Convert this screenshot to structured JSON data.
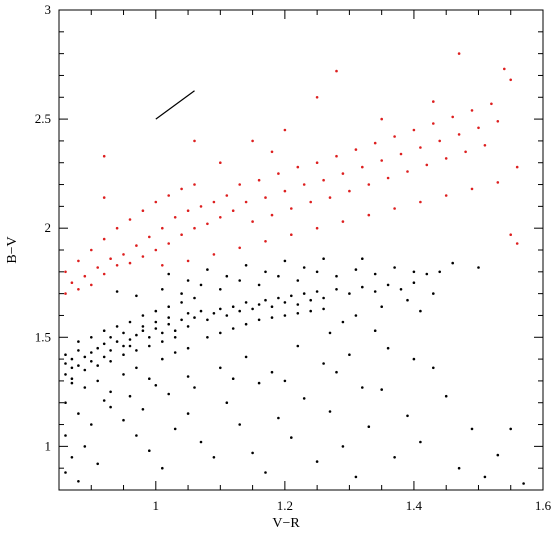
{
  "chart_data": {
    "type": "scatter",
    "xlabel": "V−R",
    "ylabel": "B−V",
    "xlim": [
      0.85,
      1.6
    ],
    "ylim": [
      0.8,
      3.0
    ],
    "xticks": [
      1,
      1.2,
      1.4,
      1.6
    ],
    "xtick_labels": [
      "1",
      "1.2",
      "1.4",
      "1.6"
    ],
    "yticks": [
      1,
      1.5,
      2,
      2.5,
      3
    ],
    "ytick_labels": [
      "1",
      "1.5",
      "2",
      "2.5",
      "3"
    ],
    "grid": false,
    "colors": {
      "series_black": "#000000",
      "series_red": "#dd1f1f"
    },
    "reddening_vector": {
      "x": [
        1.0,
        1.06
      ],
      "y": [
        2.5,
        2.63
      ]
    },
    "series": [
      {
        "color": "#000000",
        "points": [
          [
            0.86,
            1.38
          ],
          [
            0.87,
            1.4
          ],
          [
            0.88,
            1.37
          ],
          [
            0.86,
            1.42
          ],
          [
            0.89,
            1.41
          ],
          [
            0.88,
            1.44
          ],
          [
            0.9,
            1.43
          ],
          [
            0.87,
            1.36
          ],
          [
            0.9,
            1.39
          ],
          [
            0.91,
            1.45
          ],
          [
            0.92,
            1.47
          ],
          [
            0.93,
            1.44
          ],
          [
            0.92,
            1.41
          ],
          [
            0.94,
            1.48
          ],
          [
            0.95,
            1.46
          ],
          [
            0.93,
            1.5
          ],
          [
            0.96,
            1.49
          ],
          [
            0.95,
            1.52
          ],
          [
            0.97,
            1.51
          ],
          [
            0.96,
            1.46
          ],
          [
            0.98,
            1.53
          ],
          [
            0.99,
            1.5
          ],
          [
            0.98,
            1.55
          ],
          [
            1.0,
            1.54
          ],
          [
            1.01,
            1.52
          ],
          [
            1.0,
            1.57
          ],
          [
            1.02,
            1.56
          ],
          [
            1.03,
            1.53
          ],
          [
            1.02,
            1.59
          ],
          [
            1.04,
            1.58
          ],
          [
            1.05,
            1.55
          ],
          [
            1.05,
            1.61
          ],
          [
            1.06,
            1.59
          ],
          [
            1.07,
            1.62
          ],
          [
            1.08,
            1.58
          ],
          [
            1.09,
            1.61
          ],
          [
            1.1,
            1.63
          ],
          [
            1.11,
            1.6
          ],
          [
            1.12,
            1.64
          ],
          [
            1.13,
            1.62
          ],
          [
            1.14,
            1.66
          ],
          [
            1.15,
            1.63
          ],
          [
            1.16,
            1.65
          ],
          [
            1.17,
            1.67
          ],
          [
            1.18,
            1.64
          ],
          [
            1.19,
            1.68
          ],
          [
            1.2,
            1.66
          ],
          [
            1.21,
            1.69
          ],
          [
            1.22,
            1.65
          ],
          [
            1.23,
            1.7
          ],
          [
            1.24,
            1.67
          ],
          [
            1.25,
            1.71
          ],
          [
            1.26,
            1.68
          ],
          [
            1.28,
            1.72
          ],
          [
            1.3,
            1.7
          ],
          [
            1.32,
            1.73
          ],
          [
            1.34,
            1.71
          ],
          [
            1.36,
            1.74
          ],
          [
            1.38,
            1.72
          ],
          [
            1.4,
            1.75
          ],
          [
            0.86,
            1.33
          ],
          [
            0.87,
            1.31
          ],
          [
            0.89,
            1.35
          ],
          [
            0.91,
            1.37
          ],
          [
            0.93,
            1.39
          ],
          [
            0.95,
            1.42
          ],
          [
            0.97,
            1.44
          ],
          [
            0.99,
            1.46
          ],
          [
            1.01,
            1.48
          ],
          [
            1.03,
            1.5
          ],
          [
            0.88,
            1.48
          ],
          [
            0.9,
            1.5
          ],
          [
            0.92,
            1.53
          ],
          [
            0.94,
            1.55
          ],
          [
            0.96,
            1.57
          ],
          [
            0.98,
            1.6
          ],
          [
            1.0,
            1.62
          ],
          [
            1.02,
            1.64
          ],
          [
            1.04,
            1.66
          ],
          [
            1.06,
            1.68
          ],
          [
            0.87,
            1.29
          ],
          [
            0.89,
            1.27
          ],
          [
            0.91,
            1.3
          ],
          [
            0.93,
            1.25
          ],
          [
            0.95,
            1.33
          ],
          [
            0.97,
            1.36
          ],
          [
            0.99,
            1.31
          ],
          [
            1.01,
            1.4
          ],
          [
            1.03,
            1.43
          ],
          [
            1.05,
            1.45
          ],
          [
            1.08,
            1.5
          ],
          [
            1.1,
            1.52
          ],
          [
            1.12,
            1.54
          ],
          [
            1.14,
            1.56
          ],
          [
            1.16,
            1.58
          ],
          [
            1.18,
            1.59
          ],
          [
            1.2,
            1.6
          ],
          [
            1.22,
            1.61
          ],
          [
            1.24,
            1.62
          ],
          [
            1.26,
            1.63
          ],
          [
            0.94,
            1.71
          ],
          [
            0.97,
            1.69
          ],
          [
            1.01,
            1.72
          ],
          [
            1.04,
            1.7
          ],
          [
            1.07,
            1.74
          ],
          [
            1.1,
            1.72
          ],
          [
            1.13,
            1.76
          ],
          [
            1.16,
            1.74
          ],
          [
            1.19,
            1.78
          ],
          [
            1.22,
            1.76
          ],
          [
            1.25,
            1.8
          ],
          [
            1.28,
            1.78
          ],
          [
            1.31,
            1.81
          ],
          [
            1.34,
            1.79
          ],
          [
            1.37,
            1.82
          ],
          [
            1.4,
            1.8
          ],
          [
            1.42,
            1.79
          ],
          [
            1.46,
            1.84
          ],
          [
            1.5,
            1.82
          ],
          [
            1.02,
            1.79
          ],
          [
            1.08,
            1.81
          ],
          [
            1.14,
            1.83
          ],
          [
            1.2,
            1.85
          ],
          [
            1.26,
            1.86
          ],
          [
            1.32,
            1.86
          ],
          [
            1.44,
            1.8
          ],
          [
            1.05,
            1.76
          ],
          [
            1.11,
            1.78
          ],
          [
            1.17,
            1.8
          ],
          [
            1.23,
            1.82
          ],
          [
            0.86,
            1.2
          ],
          [
            0.88,
            1.15
          ],
          [
            0.9,
            1.1
          ],
          [
            0.86,
            1.05
          ],
          [
            0.89,
            1.0
          ],
          [
            0.87,
            0.95
          ],
          [
            0.91,
            0.92
          ],
          [
            0.86,
            0.88
          ],
          [
            0.88,
            0.84
          ],
          [
            0.93,
            1.18
          ],
          [
            0.95,
            1.12
          ],
          [
            0.97,
            1.05
          ],
          [
            0.99,
            0.98
          ],
          [
            1.01,
            0.9
          ],
          [
            1.03,
            1.08
          ],
          [
            1.05,
            1.15
          ],
          [
            1.07,
            1.02
          ],
          [
            1.09,
            0.95
          ],
          [
            1.11,
            1.2
          ],
          [
            1.13,
            1.1
          ],
          [
            1.15,
            0.97
          ],
          [
            1.17,
            0.88
          ],
          [
            1.19,
            1.13
          ],
          [
            1.21,
            1.04
          ],
          [
            1.23,
            1.22
          ],
          [
            1.25,
            0.93
          ],
          [
            1.27,
            1.16
          ],
          [
            1.29,
            1.0
          ],
          [
            1.31,
            0.86
          ],
          [
            1.33,
            1.09
          ],
          [
            1.35,
            1.26
          ],
          [
            1.37,
            0.95
          ],
          [
            1.39,
            1.14
          ],
          [
            1.41,
            1.02
          ],
          [
            1.43,
            1.36
          ],
          [
            1.45,
            1.23
          ],
          [
            1.47,
            0.9
          ],
          [
            1.49,
            1.08
          ],
          [
            1.51,
            0.86
          ],
          [
            1.53,
            0.96
          ],
          [
            1.55,
            1.08
          ],
          [
            1.57,
            0.83
          ],
          [
            1.4,
            1.4
          ],
          [
            1.36,
            1.45
          ],
          [
            1.3,
            1.42
          ],
          [
            1.26,
            1.38
          ],
          [
            1.22,
            1.46
          ],
          [
            1.18,
            1.34
          ],
          [
            1.14,
            1.41
          ],
          [
            1.1,
            1.36
          ],
          [
            1.05,
            1.32
          ],
          [
            1.0,
            1.28
          ],
          [
            0.96,
            1.23
          ],
          [
            0.92,
            1.21
          ],
          [
            0.98,
            1.17
          ],
          [
            1.02,
            1.24
          ],
          [
            1.06,
            1.27
          ],
          [
            1.12,
            1.31
          ],
          [
            1.16,
            1.29
          ],
          [
            1.2,
            1.3
          ],
          [
            1.28,
            1.34
          ],
          [
            1.32,
            1.27
          ],
          [
            1.34,
            1.53
          ],
          [
            1.29,
            1.57
          ],
          [
            1.27,
            1.52
          ],
          [
            1.31,
            1.6
          ],
          [
            1.35,
            1.64
          ],
          [
            1.39,
            1.67
          ],
          [
            1.41,
            1.62
          ],
          [
            1.43,
            1.7
          ]
        ]
      },
      {
        "color": "#dd1f1f",
        "points": [
          [
            0.86,
            1.7
          ],
          [
            0.87,
            1.75
          ],
          [
            0.88,
            1.72
          ],
          [
            0.86,
            1.8
          ],
          [
            0.89,
            1.78
          ],
          [
            0.9,
            1.74
          ],
          [
            0.88,
            1.85
          ],
          [
            0.91,
            1.82
          ],
          [
            0.92,
            1.79
          ],
          [
            0.9,
            1.9
          ],
          [
            0.93,
            1.86
          ],
          [
            0.94,
            1.83
          ],
          [
            0.92,
            1.95
          ],
          [
            0.95,
            1.88
          ],
          [
            0.96,
            1.84
          ],
          [
            0.94,
            2.0
          ],
          [
            0.97,
            1.92
          ],
          [
            0.98,
            1.87
          ],
          [
            0.96,
            2.04
          ],
          [
            0.99,
            1.96
          ],
          [
            1.0,
            1.9
          ],
          [
            0.98,
            2.08
          ],
          [
            1.01,
            2.0
          ],
          [
            1.02,
            1.93
          ],
          [
            1.0,
            2.12
          ],
          [
            1.03,
            2.05
          ],
          [
            1.04,
            1.97
          ],
          [
            1.02,
            2.15
          ],
          [
            1.05,
            2.08
          ],
          [
            1.06,
            2.0
          ],
          [
            1.04,
            2.18
          ],
          [
            1.07,
            2.1
          ],
          [
            1.08,
            2.02
          ],
          [
            1.06,
            2.2
          ],
          [
            1.09,
            2.12
          ],
          [
            1.1,
            2.05
          ],
          [
            1.11,
            2.15
          ],
          [
            1.12,
            2.08
          ],
          [
            1.13,
            2.2
          ],
          [
            1.14,
            2.12
          ],
          [
            1.15,
            2.03
          ],
          [
            1.16,
            2.22
          ],
          [
            1.17,
            2.14
          ],
          [
            1.18,
            2.06
          ],
          [
            1.19,
            2.25
          ],
          [
            1.2,
            2.17
          ],
          [
            1.21,
            2.09
          ],
          [
            1.22,
            2.28
          ],
          [
            1.23,
            2.2
          ],
          [
            1.24,
            2.12
          ],
          [
            1.25,
            2.3
          ],
          [
            1.26,
            2.22
          ],
          [
            1.27,
            2.14
          ],
          [
            1.28,
            2.33
          ],
          [
            1.29,
            2.25
          ],
          [
            1.3,
            2.17
          ],
          [
            1.31,
            2.36
          ],
          [
            1.32,
            2.28
          ],
          [
            1.33,
            2.2
          ],
          [
            1.34,
            2.39
          ],
          [
            1.35,
            2.31
          ],
          [
            1.36,
            2.23
          ],
          [
            1.37,
            2.42
          ],
          [
            1.38,
            2.34
          ],
          [
            1.39,
            2.26
          ],
          [
            1.4,
            2.45
          ],
          [
            1.41,
            2.37
          ],
          [
            1.42,
            2.29
          ],
          [
            1.43,
            2.48
          ],
          [
            1.44,
            2.4
          ],
          [
            1.45,
            2.32
          ],
          [
            1.46,
            2.51
          ],
          [
            1.47,
            2.43
          ],
          [
            1.48,
            2.35
          ],
          [
            1.49,
            2.54
          ],
          [
            1.5,
            2.46
          ],
          [
            1.51,
            2.38
          ],
          [
            1.52,
            2.57
          ],
          [
            1.53,
            2.49
          ],
          [
            1.55,
            2.68
          ],
          [
            1.56,
            2.28
          ],
          [
            1.54,
            2.73
          ],
          [
            1.47,
            2.8
          ],
          [
            1.28,
            2.72
          ],
          [
            1.25,
            2.6
          ],
          [
            1.06,
            2.4
          ],
          [
            0.92,
            2.33
          ],
          [
            0.92,
            2.14
          ],
          [
            1.01,
            1.83
          ],
          [
            1.05,
            1.85
          ],
          [
            1.09,
            1.88
          ],
          [
            1.13,
            1.91
          ],
          [
            1.17,
            1.94
          ],
          [
            1.21,
            1.97
          ],
          [
            1.25,
            2.0
          ],
          [
            1.29,
            2.03
          ],
          [
            1.33,
            2.06
          ],
          [
            1.37,
            2.09
          ],
          [
            1.41,
            2.12
          ],
          [
            1.45,
            2.15
          ],
          [
            1.49,
            2.18
          ],
          [
            1.53,
            2.21
          ],
          [
            1.55,
            1.97
          ],
          [
            1.56,
            1.93
          ],
          [
            1.15,
            2.4
          ],
          [
            1.2,
            2.45
          ],
          [
            1.35,
            2.5
          ],
          [
            1.43,
            2.58
          ],
          [
            1.1,
            2.3
          ],
          [
            1.18,
            2.35
          ]
        ]
      }
    ]
  }
}
